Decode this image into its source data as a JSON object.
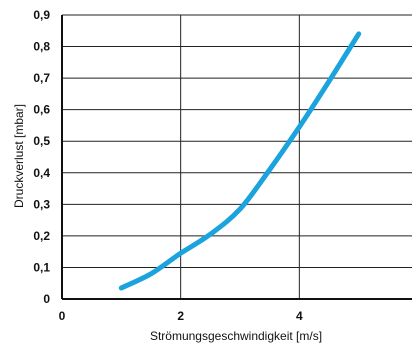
{
  "chart_data": {
    "type": "line",
    "title": "",
    "xlabel": "Strömungsgeschwindigkeit [m/s]",
    "ylabel": "Druckverlust [mbar]",
    "xlim": [
      0,
      6
    ],
    "ylim": [
      0,
      0.9
    ],
    "x_ticks": [
      0,
      2,
      4
    ],
    "x_tick_labels": [
      "0",
      "2",
      "4"
    ],
    "y_ticks": [
      0,
      0.1,
      0.2,
      0.3,
      0.4,
      0.5,
      0.6,
      0.7,
      0.8,
      0.9
    ],
    "y_tick_labels": [
      "0",
      "0,1",
      "0,2",
      "0,3",
      "0,4",
      "0,5",
      "0,6",
      "0,7",
      "0,8",
      "0,9"
    ],
    "grid": true,
    "series": [
      {
        "color": "#1aa3dc",
        "x": [
          1.0,
          1.5,
          2.0,
          2.5,
          3.0,
          3.5,
          4.0,
          4.5,
          5.0
        ],
        "y": [
          0.035,
          0.08,
          0.145,
          0.205,
          0.285,
          0.41,
          0.545,
          0.69,
          0.84
        ]
      }
    ]
  }
}
